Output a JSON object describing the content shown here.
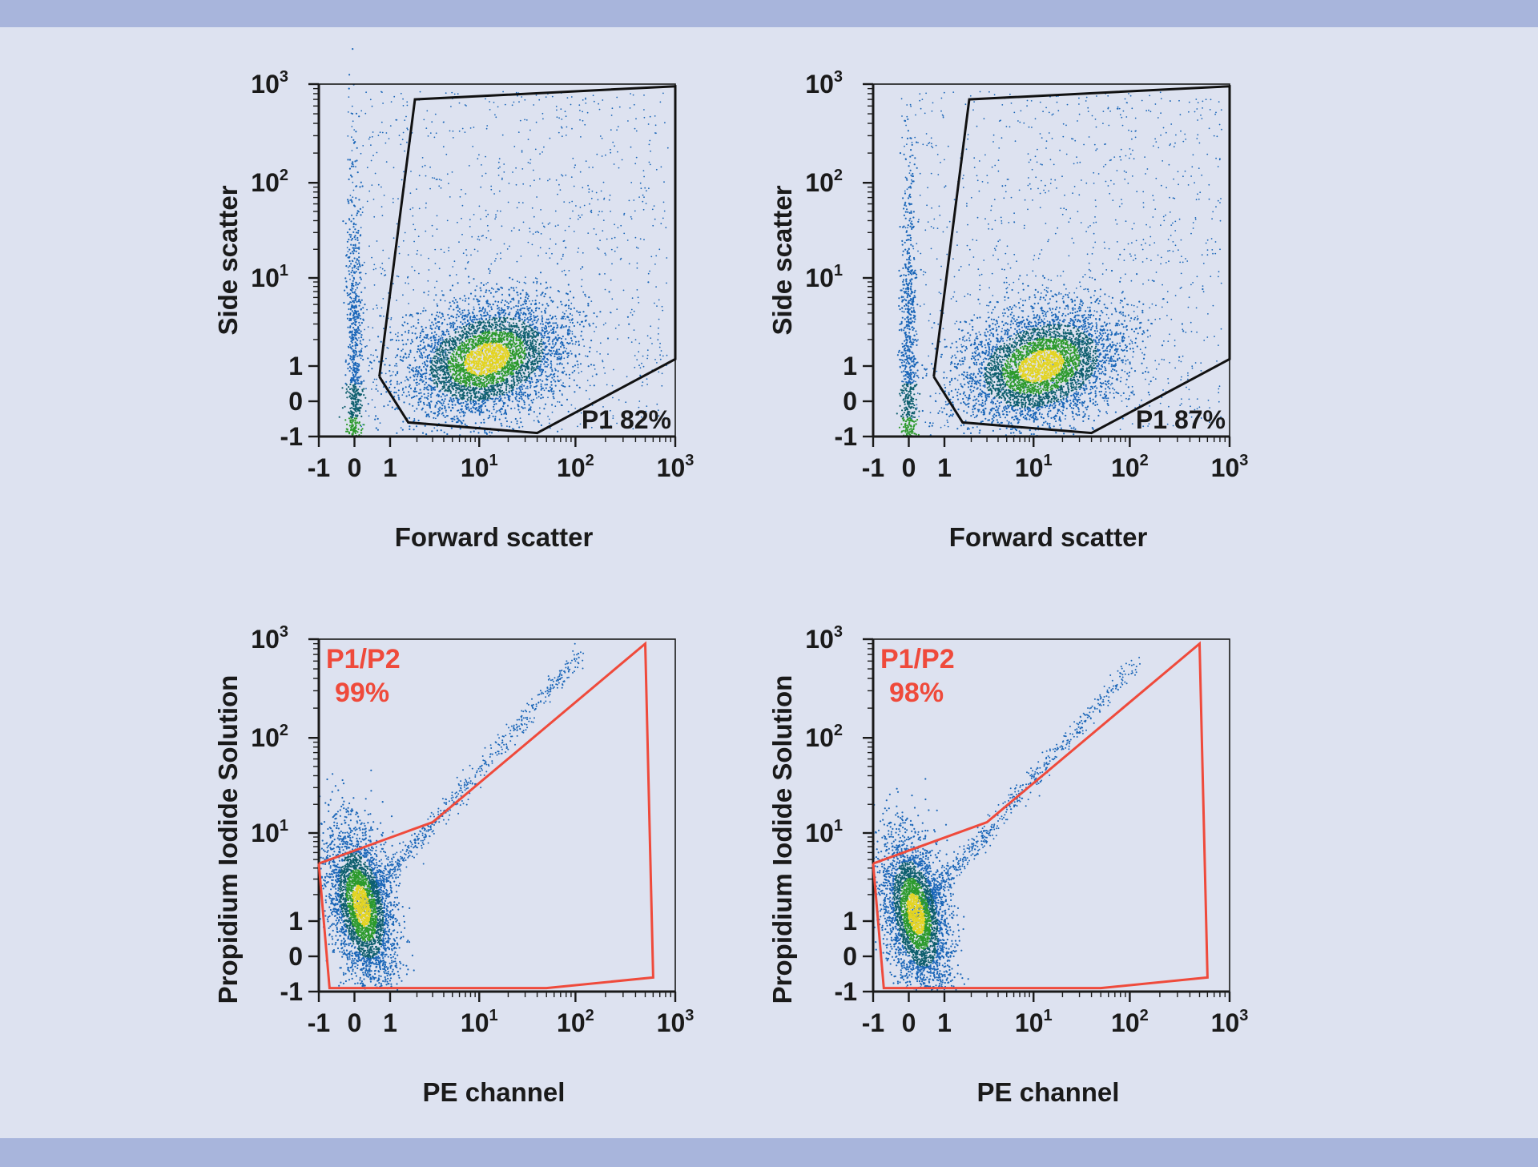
{
  "colors": {
    "background": "#dde2f0",
    "band": "#a8b5dc",
    "gate_black": "#111111",
    "gate_red": "#ef4a3b",
    "dots_low": "#1a66b8",
    "dots_mid": "#0e5f6e",
    "dots_high": "#2c9a2c",
    "dots_peak": "#e3d422"
  },
  "chart_data": [
    {
      "type": "scatter",
      "xlabel": "Forward scatter",
      "ylabel": "Side scatter",
      "x_ticks": [
        {
          "base": "-1",
          "sup": ""
        },
        {
          "base": "0",
          "sup": ""
        },
        {
          "base": "1",
          "sup": ""
        },
        {
          "base": "10",
          "sup": "1"
        },
        {
          "base": "10",
          "sup": "2"
        },
        {
          "base": "10",
          "sup": "3"
        }
      ],
      "y_ticks": [
        {
          "base": "-1",
          "sup": ""
        },
        {
          "base": "0",
          "sup": ""
        },
        {
          "base": "1",
          "sup": ""
        },
        {
          "base": "10",
          "sup": "1"
        },
        {
          "base": "10",
          "sup": "2"
        },
        {
          "base": "10",
          "sup": "3"
        }
      ],
      "scale": "biexponential",
      "gate": {
        "name": "P1",
        "percent": "82%",
        "label": "P1 82%",
        "color": "#111111",
        "vertices": [
          [
            0.7,
            0.7
          ],
          [
            1.9,
            700
          ],
          [
            1000,
            950
          ],
          [
            1000,
            1.2
          ],
          [
            40,
            -0.9
          ],
          [
            1.6,
            -0.6
          ],
          [
            0.7,
            0.7
          ]
        ]
      },
      "populations": [
        {
          "x_center": 12,
          "y_center": 1.2,
          "spread": "wide",
          "density": "high"
        },
        {
          "x_center": 0,
          "y_center": -0.5,
          "spread": "narrow",
          "density": "medium"
        }
      ]
    },
    {
      "type": "scatter",
      "xlabel": "Forward scatter",
      "ylabel": "Side scatter",
      "x_ticks": [
        {
          "base": "-1",
          "sup": ""
        },
        {
          "base": "0",
          "sup": ""
        },
        {
          "base": "1",
          "sup": ""
        },
        {
          "base": "10",
          "sup": "1"
        },
        {
          "base": "10",
          "sup": "2"
        },
        {
          "base": "10",
          "sup": "3"
        }
      ],
      "y_ticks": [
        {
          "base": "-1",
          "sup": ""
        },
        {
          "base": "0",
          "sup": ""
        },
        {
          "base": "1",
          "sup": ""
        },
        {
          "base": "10",
          "sup": "1"
        },
        {
          "base": "10",
          "sup": "2"
        },
        {
          "base": "10",
          "sup": "3"
        }
      ],
      "scale": "biexponential",
      "gate": {
        "name": "P1",
        "percent": "87%",
        "label": "P1 87%",
        "color": "#111111",
        "vertices": [
          [
            0.7,
            0.7
          ],
          [
            1.9,
            700
          ],
          [
            1000,
            950
          ],
          [
            1000,
            1.2
          ],
          [
            40,
            -0.9
          ],
          [
            1.6,
            -0.6
          ],
          [
            0.7,
            0.7
          ]
        ]
      },
      "populations": [
        {
          "x_center": 12,
          "y_center": 1.0,
          "spread": "wide",
          "density": "high"
        },
        {
          "x_center": 0,
          "y_center": -0.5,
          "spread": "narrow",
          "density": "medium"
        }
      ]
    },
    {
      "type": "scatter",
      "xlabel": "PE channel",
      "ylabel": "Propidium Iodide Solution",
      "x_ticks": [
        {
          "base": "-1",
          "sup": ""
        },
        {
          "base": "0",
          "sup": ""
        },
        {
          "base": "1",
          "sup": ""
        },
        {
          "base": "10",
          "sup": "1"
        },
        {
          "base": "10",
          "sup": "2"
        },
        {
          "base": "10",
          "sup": "3"
        }
      ],
      "y_ticks": [
        {
          "base": "-1",
          "sup": ""
        },
        {
          "base": "0",
          "sup": ""
        },
        {
          "base": "1",
          "sup": ""
        },
        {
          "base": "10",
          "sup": "1"
        },
        {
          "base": "10",
          "sup": "2"
        },
        {
          "base": "10",
          "sup": "3"
        }
      ],
      "scale": "biexponential",
      "gate": {
        "name": "P1/P2",
        "percent": "99%",
        "label_line1": "P1/P2",
        "label_line2": "99%",
        "color": "#ef4a3b",
        "vertices": [
          [
            -1,
            4.5
          ],
          [
            3,
            13
          ],
          [
            500,
            900
          ],
          [
            600,
            -0.6
          ],
          [
            50,
            -0.9
          ],
          [
            -0.7,
            -0.9
          ],
          [
            -1,
            4.5
          ]
        ]
      },
      "populations": [
        {
          "x_center": 0.2,
          "y_center": 1.5,
          "spread": "diagonal",
          "density": "high"
        }
      ]
    },
    {
      "type": "scatter",
      "xlabel": "PE channel",
      "ylabel": "Propidium Iodide Solution",
      "x_ticks": [
        {
          "base": "-1",
          "sup": ""
        },
        {
          "base": "0",
          "sup": ""
        },
        {
          "base": "1",
          "sup": ""
        },
        {
          "base": "10",
          "sup": "1"
        },
        {
          "base": "10",
          "sup": "2"
        },
        {
          "base": "10",
          "sup": "3"
        }
      ],
      "y_ticks": [
        {
          "base": "-1",
          "sup": ""
        },
        {
          "base": "0",
          "sup": ""
        },
        {
          "base": "1",
          "sup": ""
        },
        {
          "base": "10",
          "sup": "1"
        },
        {
          "base": "10",
          "sup": "2"
        },
        {
          "base": "10",
          "sup": "3"
        }
      ],
      "scale": "biexponential",
      "gate": {
        "name": "P1/P2",
        "percent": "98%",
        "label_line1": "P1/P2",
        "label_line2": "98%",
        "color": "#ef4a3b",
        "vertices": [
          [
            -1,
            4.5
          ],
          [
            3,
            13
          ],
          [
            500,
            900
          ],
          [
            600,
            -0.6
          ],
          [
            50,
            -0.9
          ],
          [
            -0.7,
            -0.9
          ],
          [
            -1,
            4.5
          ]
        ]
      },
      "populations": [
        {
          "x_center": 0.2,
          "y_center": 1.2,
          "spread": "diagonal",
          "density": "high"
        }
      ]
    }
  ]
}
